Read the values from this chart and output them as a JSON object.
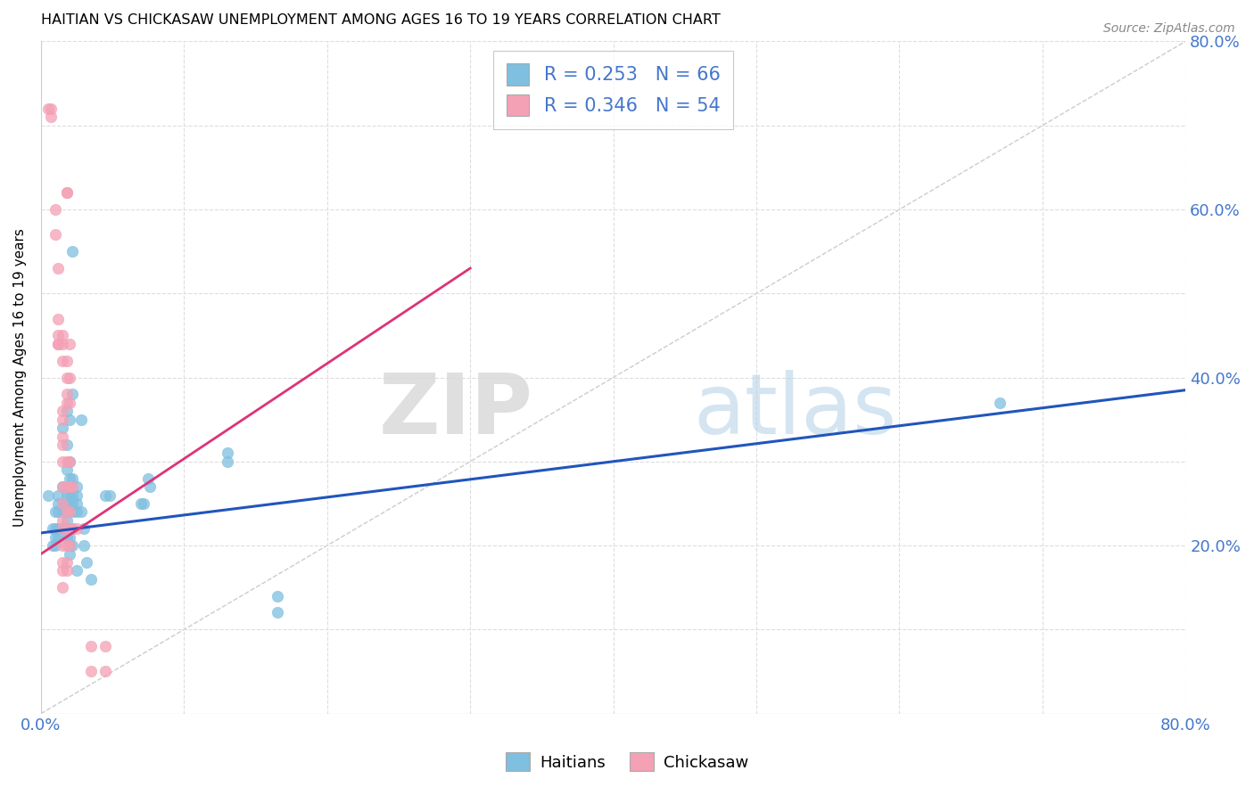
{
  "title": "HAITIAN VS CHICKASAW UNEMPLOYMENT AMONG AGES 16 TO 19 YEARS CORRELATION CHART",
  "source": "Source: ZipAtlas.com",
  "ylabel": "Unemployment Among Ages 16 to 19 years",
  "xlim": [
    0.0,
    0.8
  ],
  "ylim": [
    0.0,
    0.8
  ],
  "xticks": [
    0.0,
    0.1,
    0.2,
    0.3,
    0.4,
    0.5,
    0.6,
    0.7,
    0.8
  ],
  "yticks": [
    0.0,
    0.1,
    0.2,
    0.3,
    0.4,
    0.5,
    0.6,
    0.7,
    0.8
  ],
  "xticklabels": [
    "0.0%",
    "",
    "",
    "",
    "",
    "",
    "",
    "",
    "80.0%"
  ],
  "left_yticklabels": [
    "",
    "",
    "",
    "",
    "",
    "",
    "",
    "",
    ""
  ],
  "right_yticklabels": [
    "",
    "",
    "20.0%",
    "",
    "40.0%",
    "",
    "60.0%",
    "",
    "80.0%"
  ],
  "haitian_color": "#7fbfdf",
  "chickasaw_color": "#f4a0b5",
  "haitian_R": 0.253,
  "haitian_N": 66,
  "chickasaw_R": 0.346,
  "chickasaw_N": 54,
  "legend_label_haitian": "Haitians",
  "legend_label_chickasaw": "Chickasaw",
  "watermark_zip": "ZIP",
  "watermark_atlas": "atlas",
  "diagonal_color": "#cccccc",
  "haitian_line_color": "#2255bb",
  "chickasaw_line_color": "#dd3377",
  "legend_R_color": "#4477cc",
  "legend_N_color": "#44aa44",
  "haitian_scatter": [
    [
      0.005,
      0.26
    ],
    [
      0.008,
      0.22
    ],
    [
      0.008,
      0.2
    ],
    [
      0.01,
      0.24
    ],
    [
      0.01,
      0.22
    ],
    [
      0.01,
      0.21
    ],
    [
      0.01,
      0.2
    ],
    [
      0.012,
      0.26
    ],
    [
      0.012,
      0.25
    ],
    [
      0.012,
      0.24
    ],
    [
      0.012,
      0.22
    ],
    [
      0.012,
      0.21
    ],
    [
      0.015,
      0.34
    ],
    [
      0.015,
      0.27
    ],
    [
      0.015,
      0.25
    ],
    [
      0.015,
      0.24
    ],
    [
      0.015,
      0.22
    ],
    [
      0.018,
      0.36
    ],
    [
      0.018,
      0.32
    ],
    [
      0.018,
      0.29
    ],
    [
      0.018,
      0.26
    ],
    [
      0.018,
      0.25
    ],
    [
      0.018,
      0.24
    ],
    [
      0.018,
      0.23
    ],
    [
      0.018,
      0.22
    ],
    [
      0.018,
      0.21
    ],
    [
      0.02,
      0.35
    ],
    [
      0.02,
      0.3
    ],
    [
      0.02,
      0.28
    ],
    [
      0.02,
      0.26
    ],
    [
      0.02,
      0.25
    ],
    [
      0.02,
      0.24
    ],
    [
      0.02,
      0.22
    ],
    [
      0.02,
      0.21
    ],
    [
      0.02,
      0.2
    ],
    [
      0.02,
      0.19
    ],
    [
      0.022,
      0.55
    ],
    [
      0.022,
      0.38
    ],
    [
      0.022,
      0.28
    ],
    [
      0.022,
      0.26
    ],
    [
      0.022,
      0.25
    ],
    [
      0.022,
      0.24
    ],
    [
      0.022,
      0.22
    ],
    [
      0.022,
      0.2
    ],
    [
      0.025,
      0.27
    ],
    [
      0.025,
      0.26
    ],
    [
      0.025,
      0.25
    ],
    [
      0.025,
      0.24
    ],
    [
      0.025,
      0.17
    ],
    [
      0.028,
      0.35
    ],
    [
      0.028,
      0.24
    ],
    [
      0.03,
      0.22
    ],
    [
      0.03,
      0.2
    ],
    [
      0.032,
      0.18
    ],
    [
      0.035,
      0.16
    ],
    [
      0.045,
      0.26
    ],
    [
      0.048,
      0.26
    ],
    [
      0.07,
      0.25
    ],
    [
      0.072,
      0.25
    ],
    [
      0.075,
      0.28
    ],
    [
      0.076,
      0.27
    ],
    [
      0.13,
      0.31
    ],
    [
      0.13,
      0.3
    ],
    [
      0.165,
      0.14
    ],
    [
      0.165,
      0.12
    ],
    [
      0.67,
      0.37
    ]
  ],
  "chickasaw_scatter": [
    [
      0.005,
      0.72
    ],
    [
      0.007,
      0.72
    ],
    [
      0.007,
      0.71
    ],
    [
      0.01,
      0.6
    ],
    [
      0.01,
      0.57
    ],
    [
      0.012,
      0.53
    ],
    [
      0.012,
      0.47
    ],
    [
      0.012,
      0.45
    ],
    [
      0.012,
      0.44
    ],
    [
      0.012,
      0.44
    ],
    [
      0.015,
      0.45
    ],
    [
      0.015,
      0.44
    ],
    [
      0.015,
      0.42
    ],
    [
      0.015,
      0.36
    ],
    [
      0.015,
      0.35
    ],
    [
      0.015,
      0.33
    ],
    [
      0.015,
      0.32
    ],
    [
      0.015,
      0.3
    ],
    [
      0.015,
      0.27
    ],
    [
      0.015,
      0.25
    ],
    [
      0.015,
      0.23
    ],
    [
      0.015,
      0.22
    ],
    [
      0.015,
      0.2
    ],
    [
      0.015,
      0.18
    ],
    [
      0.015,
      0.17
    ],
    [
      0.015,
      0.15
    ],
    [
      0.018,
      0.62
    ],
    [
      0.018,
      0.62
    ],
    [
      0.018,
      0.42
    ],
    [
      0.018,
      0.4
    ],
    [
      0.018,
      0.38
    ],
    [
      0.018,
      0.37
    ],
    [
      0.018,
      0.3
    ],
    [
      0.018,
      0.27
    ],
    [
      0.018,
      0.24
    ],
    [
      0.018,
      0.22
    ],
    [
      0.018,
      0.2
    ],
    [
      0.018,
      0.18
    ],
    [
      0.018,
      0.17
    ],
    [
      0.02,
      0.44
    ],
    [
      0.02,
      0.4
    ],
    [
      0.02,
      0.37
    ],
    [
      0.02,
      0.3
    ],
    [
      0.02,
      0.27
    ],
    [
      0.02,
      0.24
    ],
    [
      0.02,
      0.22
    ],
    [
      0.02,
      0.2
    ],
    [
      0.022,
      0.27
    ],
    [
      0.022,
      0.22
    ],
    [
      0.025,
      0.22
    ],
    [
      0.035,
      0.08
    ],
    [
      0.035,
      0.05
    ],
    [
      0.045,
      0.08
    ],
    [
      0.045,
      0.05
    ]
  ]
}
